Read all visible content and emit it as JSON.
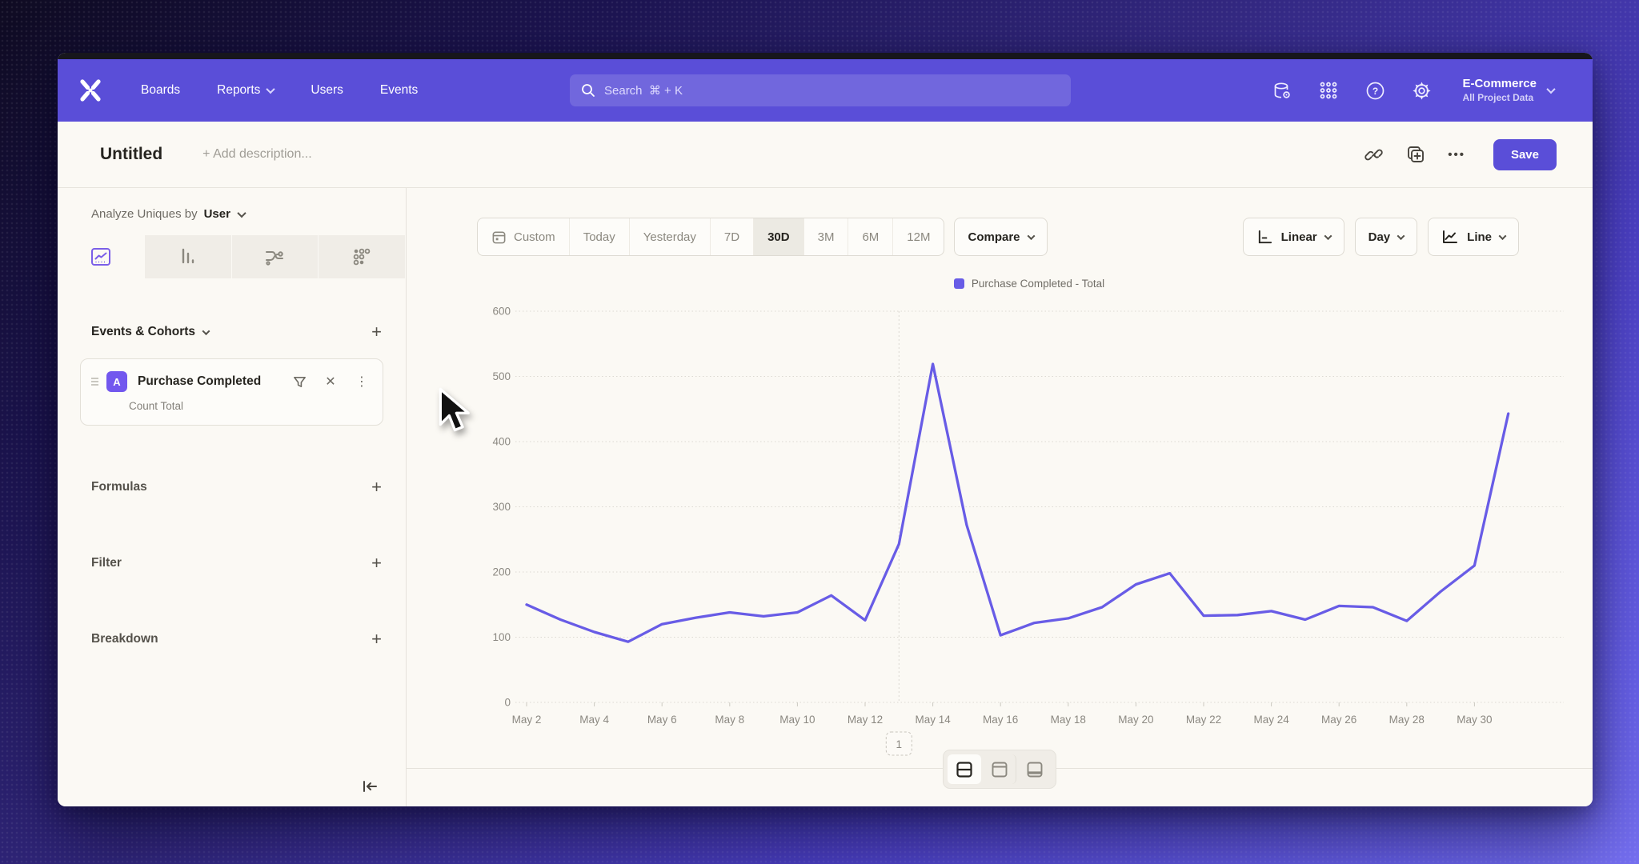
{
  "nav": {
    "items": [
      {
        "label": "Boards"
      },
      {
        "label": "Reports",
        "has_chevron": true
      },
      {
        "label": "Users"
      },
      {
        "label": "Events"
      }
    ],
    "search": {
      "placeholder": "Search  ⌘ + K"
    },
    "project": {
      "name": "E-Commerce",
      "subtitle": "All Project Data"
    }
  },
  "title_bar": {
    "title": "Untitled",
    "add_description": "+ Add description...",
    "save_label": "Save"
  },
  "sidebar": {
    "analyze_label": "Analyze Uniques by",
    "analyze_value": "User",
    "tabs": [
      "insights-line",
      "bar",
      "flows",
      "retention"
    ],
    "selected_tab": "insights-line",
    "events_header": "Events & Cohorts",
    "event_card": {
      "badge": "A",
      "title": "Purchase Completed",
      "subtitle": "Count Total"
    },
    "sections": [
      {
        "label": "Formulas"
      },
      {
        "label": "Filter"
      },
      {
        "label": "Breakdown"
      }
    ]
  },
  "toolbar": {
    "ranges": [
      "Custom",
      "Today",
      "Yesterday",
      "7D",
      "30D",
      "3M",
      "6M",
      "12M"
    ],
    "selected_range": "30D",
    "compare_label": "Compare",
    "scale_label": "Linear",
    "interval_label": "Day",
    "chart_type_label": "Line"
  },
  "chart_data": {
    "type": "line",
    "legend_position": "top-center",
    "grid": "horizontal-dotted",
    "ylim": [
      0,
      600
    ],
    "yticks": [
      0,
      100,
      200,
      300,
      400,
      500,
      600
    ],
    "x": [
      "May 2",
      "May 3",
      "May 4",
      "May 5",
      "May 6",
      "May 7",
      "May 8",
      "May 9",
      "May 10",
      "May 11",
      "May 12",
      "May 13",
      "May 14",
      "May 15",
      "May 16",
      "May 17",
      "May 18",
      "May 19",
      "May 20",
      "May 21",
      "May 22",
      "May 23",
      "May 24",
      "May 25",
      "May 26",
      "May 27",
      "May 28",
      "May 29",
      "May 30",
      "May 31"
    ],
    "x_tick_labels": [
      "May 2",
      "May 4",
      "May 6",
      "May 8",
      "May 10",
      "May 12",
      "May 14",
      "May 16",
      "May 18",
      "May 20",
      "May 22",
      "May 24",
      "May 26",
      "May 28",
      "May 30"
    ],
    "series": [
      {
        "name": "Purchase Completed - Total",
        "color": "#685ce6",
        "values": [
          150,
          127,
          108,
          93,
          120,
          130,
          138,
          132,
          138,
          164,
          126,
          243,
          519,
          272,
          103,
          122,
          129,
          146,
          181,
          198,
          133,
          134,
          140,
          127,
          148,
          146,
          125,
          170,
          210,
          443
        ]
      }
    ],
    "annotation": {
      "label": "1",
      "x_index": 11,
      "x_label": "May 13"
    }
  },
  "footer": {
    "layout_options": [
      "split-horizontal",
      "panel-top",
      "panel-bottom"
    ],
    "selected": "split-horizontal"
  },
  "icons": {
    "plus": "+",
    "close": "✕",
    "ellipsis": "•••",
    "kebab": "⋮"
  },
  "colors": {
    "nav_purple": "#5a4ed8",
    "accent_purple": "#685ce6",
    "badge_purple": "#7257ee",
    "canvas": "#fbf9f4"
  }
}
